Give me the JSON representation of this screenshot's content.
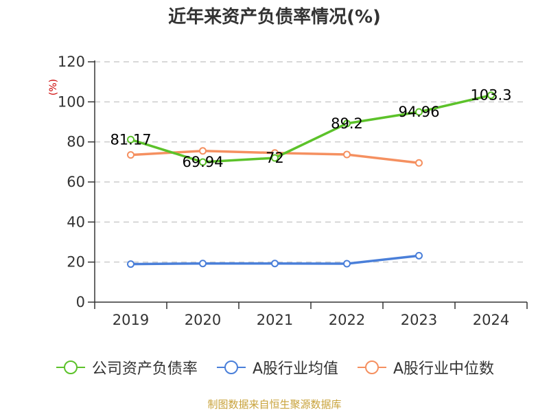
{
  "chart_data": {
    "type": "line",
    "title": "近年来资产负债率情况(%)",
    "ylabel": "(%)",
    "xlabel": "",
    "categories": [
      "2019",
      "2020",
      "2021",
      "2022",
      "2023",
      "2024"
    ],
    "ylim": [
      0,
      120
    ],
    "yticks": [
      0,
      20,
      40,
      60,
      80,
      100,
      120
    ],
    "grid": true,
    "legend_position": "bottom",
    "series": [
      {
        "name": "公司资产负债率",
        "color": "#5cc22a",
        "values": [
          81.17,
          69.94,
          72,
          89.2,
          94.96,
          103.3
        ],
        "labels": [
          "81.17",
          "69.94",
          "72",
          "89.2",
          "94.96",
          "103.3"
        ]
      },
      {
        "name": "A股行业均值",
        "color": "#4a7fd9",
        "values": [
          19.0,
          19.3,
          19.3,
          19.2,
          23.2,
          null
        ]
      },
      {
        "name": "A股行业中位数",
        "color": "#f59060",
        "values": [
          73.5,
          75.5,
          74.5,
          73.7,
          69.5,
          null
        ]
      }
    ]
  },
  "source": "制图数据来自恒生聚源数据库"
}
